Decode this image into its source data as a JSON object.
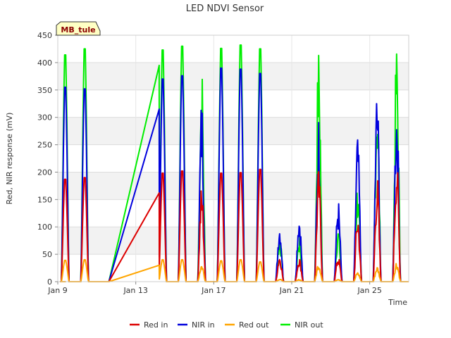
{
  "chart_data": {
    "type": "line",
    "title": "LED NDVI Sensor",
    "xlabel": "Time",
    "ylabel": "Red, NIR response (mV)",
    "site_badge": "MB_tule",
    "xlim": [
      "2023-01-09",
      "2023-01-27"
    ],
    "ylim": [
      0,
      450
    ],
    "yticks": [
      0,
      50,
      100,
      150,
      200,
      250,
      300,
      350,
      400,
      450
    ],
    "xticks": [
      {
        "date": "2023-01-09",
        "label": "Jan 9"
      },
      {
        "date": "2023-01-13",
        "label": "Jan 13"
      },
      {
        "date": "2023-01-17",
        "label": "Jan 17"
      },
      {
        "date": "2023-01-21",
        "label": "Jan 21"
      },
      {
        "date": "2023-01-25",
        "label": "Jan 25"
      }
    ],
    "grid": true,
    "legend_position": "bottom",
    "series": [
      {
        "name": "Red in",
        "color": "#dd0000"
      },
      {
        "name": "NIR in",
        "color": "#0000dd"
      },
      {
        "name": "Red out",
        "color": "#ffa500"
      },
      {
        "name": "NIR out",
        "color": "#00ee00"
      }
    ],
    "days": [
      {
        "date": "2023-01-09",
        "red_in": 187,
        "nir_in": 355,
        "red_out": 39,
        "nir_out": 414,
        "pattern": "smooth"
      },
      {
        "date": "2023-01-10",
        "red_in": 190,
        "nir_in": 352,
        "red_out": 40,
        "nir_out": 425,
        "pattern": "smooth"
      },
      {
        "date": "2023-01-14",
        "red_in": 198,
        "nir_in": 370,
        "red_out": 40,
        "nir_out": 423,
        "pattern": "smooth",
        "gap_before": true,
        "gap_start": "2023-01-11",
        "gap_values": {
          "red_in": 162,
          "nir_in": 315,
          "red_out": 30,
          "nir_out": 395
        }
      },
      {
        "date": "2023-01-15",
        "red_in": 202,
        "nir_in": 376,
        "red_out": 40,
        "nir_out": 430,
        "pattern": "smooth"
      },
      {
        "date": "2023-01-16",
        "red_in": 172,
        "nir_in": 330,
        "red_out": 33,
        "nir_out": 388,
        "pattern": "noisy"
      },
      {
        "date": "2023-01-17",
        "red_in": 198,
        "nir_in": 390,
        "red_out": 38,
        "nir_out": 426,
        "pattern": "smooth"
      },
      {
        "date": "2023-01-18",
        "red_in": 199,
        "nir_in": 388,
        "red_out": 40,
        "nir_out": 432,
        "pattern": "smooth"
      },
      {
        "date": "2023-01-19",
        "red_in": 205,
        "nir_in": 380,
        "red_out": 36,
        "nir_out": 425,
        "pattern": "smooth"
      },
      {
        "date": "2023-01-20",
        "red_in": 50,
        "nir_in": 110,
        "red_out": 5,
        "nir_out": 87,
        "pattern": "noisy"
      },
      {
        "date": "2023-01-21",
        "red_in": 45,
        "nir_in": 128,
        "red_out": 4,
        "nir_out": 82,
        "pattern": "noisy"
      },
      {
        "date": "2023-01-22",
        "red_in": 205,
        "nir_in": 305,
        "red_out": 36,
        "nir_out": 433,
        "pattern": "noisy"
      },
      {
        "date": "2023-01-23",
        "red_in": 48,
        "nir_in": 148,
        "red_out": 5,
        "nir_out": 100,
        "pattern": "noisy"
      },
      {
        "date": "2023-01-24",
        "red_in": 125,
        "nir_in": 268,
        "red_out": 18,
        "nir_out": 180,
        "pattern": "noisy"
      },
      {
        "date": "2023-01-25",
        "red_in": 190,
        "nir_in": 356,
        "red_out": 28,
        "nir_out": 355,
        "pattern": "noisy"
      },
      {
        "date": "2023-01-26",
        "red_in": 232,
        "nir_in": 342,
        "red_out": 37,
        "nir_out": 438,
        "pattern": "noisy"
      }
    ]
  }
}
